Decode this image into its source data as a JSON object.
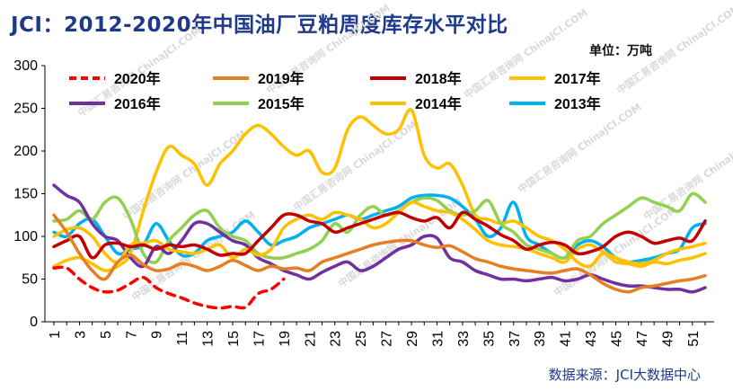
{
  "title": "JCI：2012-2020年中国油厂豆粕周度库存水平对比",
  "unit": "单位：万吨",
  "source": "数据来源：JCI大数据中心",
  "watermark": "中国汇易咨询网 ChinaJCI.COM",
  "chart_data": {
    "type": "line",
    "xlim": [
      1,
      52
    ],
    "ylim": [
      0,
      300
    ],
    "y_ticks": [
      0,
      50,
      100,
      150,
      200,
      250,
      300
    ],
    "x_ticks": [
      1,
      3,
      5,
      7,
      9,
      11,
      13,
      15,
      17,
      19,
      21,
      23,
      25,
      27,
      29,
      31,
      33,
      35,
      37,
      39,
      41,
      43,
      45,
      47,
      49,
      51
    ],
    "grid": false,
    "legend_position": "top",
    "series": [
      {
        "name": "2020年",
        "color": "#ff0000",
        "dashed": true,
        "values": [
          63,
          63,
          50,
          40,
          35,
          37,
          45,
          52,
          40,
          33,
          28,
          22,
          18,
          16,
          18,
          17,
          33,
          38,
          50
        ]
      },
      {
        "name": "2019年",
        "color": "#e67e22",
        "values": [
          125,
          105,
          80,
          60,
          50,
          70,
          78,
          67,
          60,
          62,
          68,
          65,
          60,
          65,
          72,
          66,
          60,
          65,
          62,
          63,
          60,
          70,
          75,
          80,
          85,
          90,
          93,
          95,
          95,
          90,
          87,
          89,
          82,
          74,
          70,
          65,
          62,
          60,
          58,
          57,
          60,
          62,
          55,
          45,
          38,
          35,
          40,
          42,
          45,
          48,
          50,
          54
        ]
      },
      {
        "name": "2018年",
        "color": "#c00000",
        "values": [
          88,
          95,
          100,
          75,
          90,
          92,
          88,
          90,
          85,
          90,
          88,
          90,
          85,
          78,
          80,
          80,
          95,
          110,
          125,
          125,
          118,
          115,
          105,
          110,
          115,
          120,
          125,
          128,
          122,
          118,
          122,
          110,
          128,
          120,
          112,
          102,
          95,
          85,
          90,
          93,
          90,
          80,
          82,
          88,
          100,
          105,
          100,
          92,
          95,
          98,
          95,
          118
        ]
      },
      {
        "name": "2017年",
        "color": "#ffc000",
        "values": [
          100,
          108,
          110,
          100,
          80,
          70,
          90,
          92,
          95,
          85,
          82,
          80,
          85,
          90,
          75,
          85,
          78,
          85,
          110,
          120,
          125,
          120,
          128,
          125,
          120,
          110,
          115,
          128,
          140,
          135,
          130,
          128,
          120,
          108,
          95,
          90,
          88,
          85,
          80,
          75,
          70,
          85,
          90,
          82,
          75,
          70,
          68,
          72,
          80,
          85,
          88,
          92
        ]
      },
      {
        "name": "2016年",
        "color": "#7030a0",
        "values": [
          160,
          148,
          140,
          115,
          100,
          95,
          75,
          65,
          88,
          80,
          95,
          115,
          115,
          105,
          95,
          90,
          75,
          68,
          60,
          55,
          50,
          58,
          65,
          70,
          60,
          65,
          75,
          85,
          90,
          100,
          98,
          75,
          70,
          60,
          55,
          50,
          50,
          48,
          50,
          52,
          48,
          50,
          55,
          50,
          45,
          42,
          42,
          40,
          38,
          38,
          35,
          40
        ]
      },
      {
        "name": "2015年",
        "color": "#92d050",
        "values": [
          118,
          120,
          130,
          120,
          140,
          145,
          120,
          80,
          70,
          95,
          110,
          125,
          130,
          110,
          100,
          95,
          80,
          75,
          75,
          80,
          85,
          95,
          115,
          105,
          125,
          135,
          125,
          130,
          140,
          145,
          142,
          130,
          125,
          130,
          142,
          115,
          105,
          90,
          85,
          80,
          75,
          95,
          100,
          115,
          125,
          135,
          145,
          140,
          135,
          130,
          150,
          140
        ]
      },
      {
        "name": "2014年",
        "color": "#ffc000",
        "values": [
          65,
          72,
          75,
          68,
          60,
          65,
          80,
          130,
          175,
          205,
          195,
          185,
          160,
          185,
          200,
          220,
          230,
          220,
          205,
          195,
          200,
          175,
          180,
          225,
          240,
          230,
          220,
          225,
          248,
          195,
          180,
          185,
          160,
          125,
          120,
          115,
          118,
          110,
          100,
          95,
          85,
          70,
          65,
          80,
          70,
          68,
          65,
          70,
          68,
          72,
          75,
          80
        ]
      },
      {
        "name": "2013年",
        "color": "#00b0f0",
        "values": [
          105,
          100,
          115,
          120,
          100,
          80,
          85,
          90,
          115,
          95,
          78,
          80,
          95,
          100,
          105,
          118,
          105,
          90,
          95,
          100,
          110,
          115,
          120,
          125,
          120,
          125,
          130,
          135,
          145,
          148,
          148,
          145,
          135,
          120,
          100,
          110,
          140,
          100,
          90,
          80,
          75,
          90,
          95,
          88,
          75,
          70,
          72,
          75,
          80,
          85,
          110,
          115
        ]
      }
    ]
  }
}
